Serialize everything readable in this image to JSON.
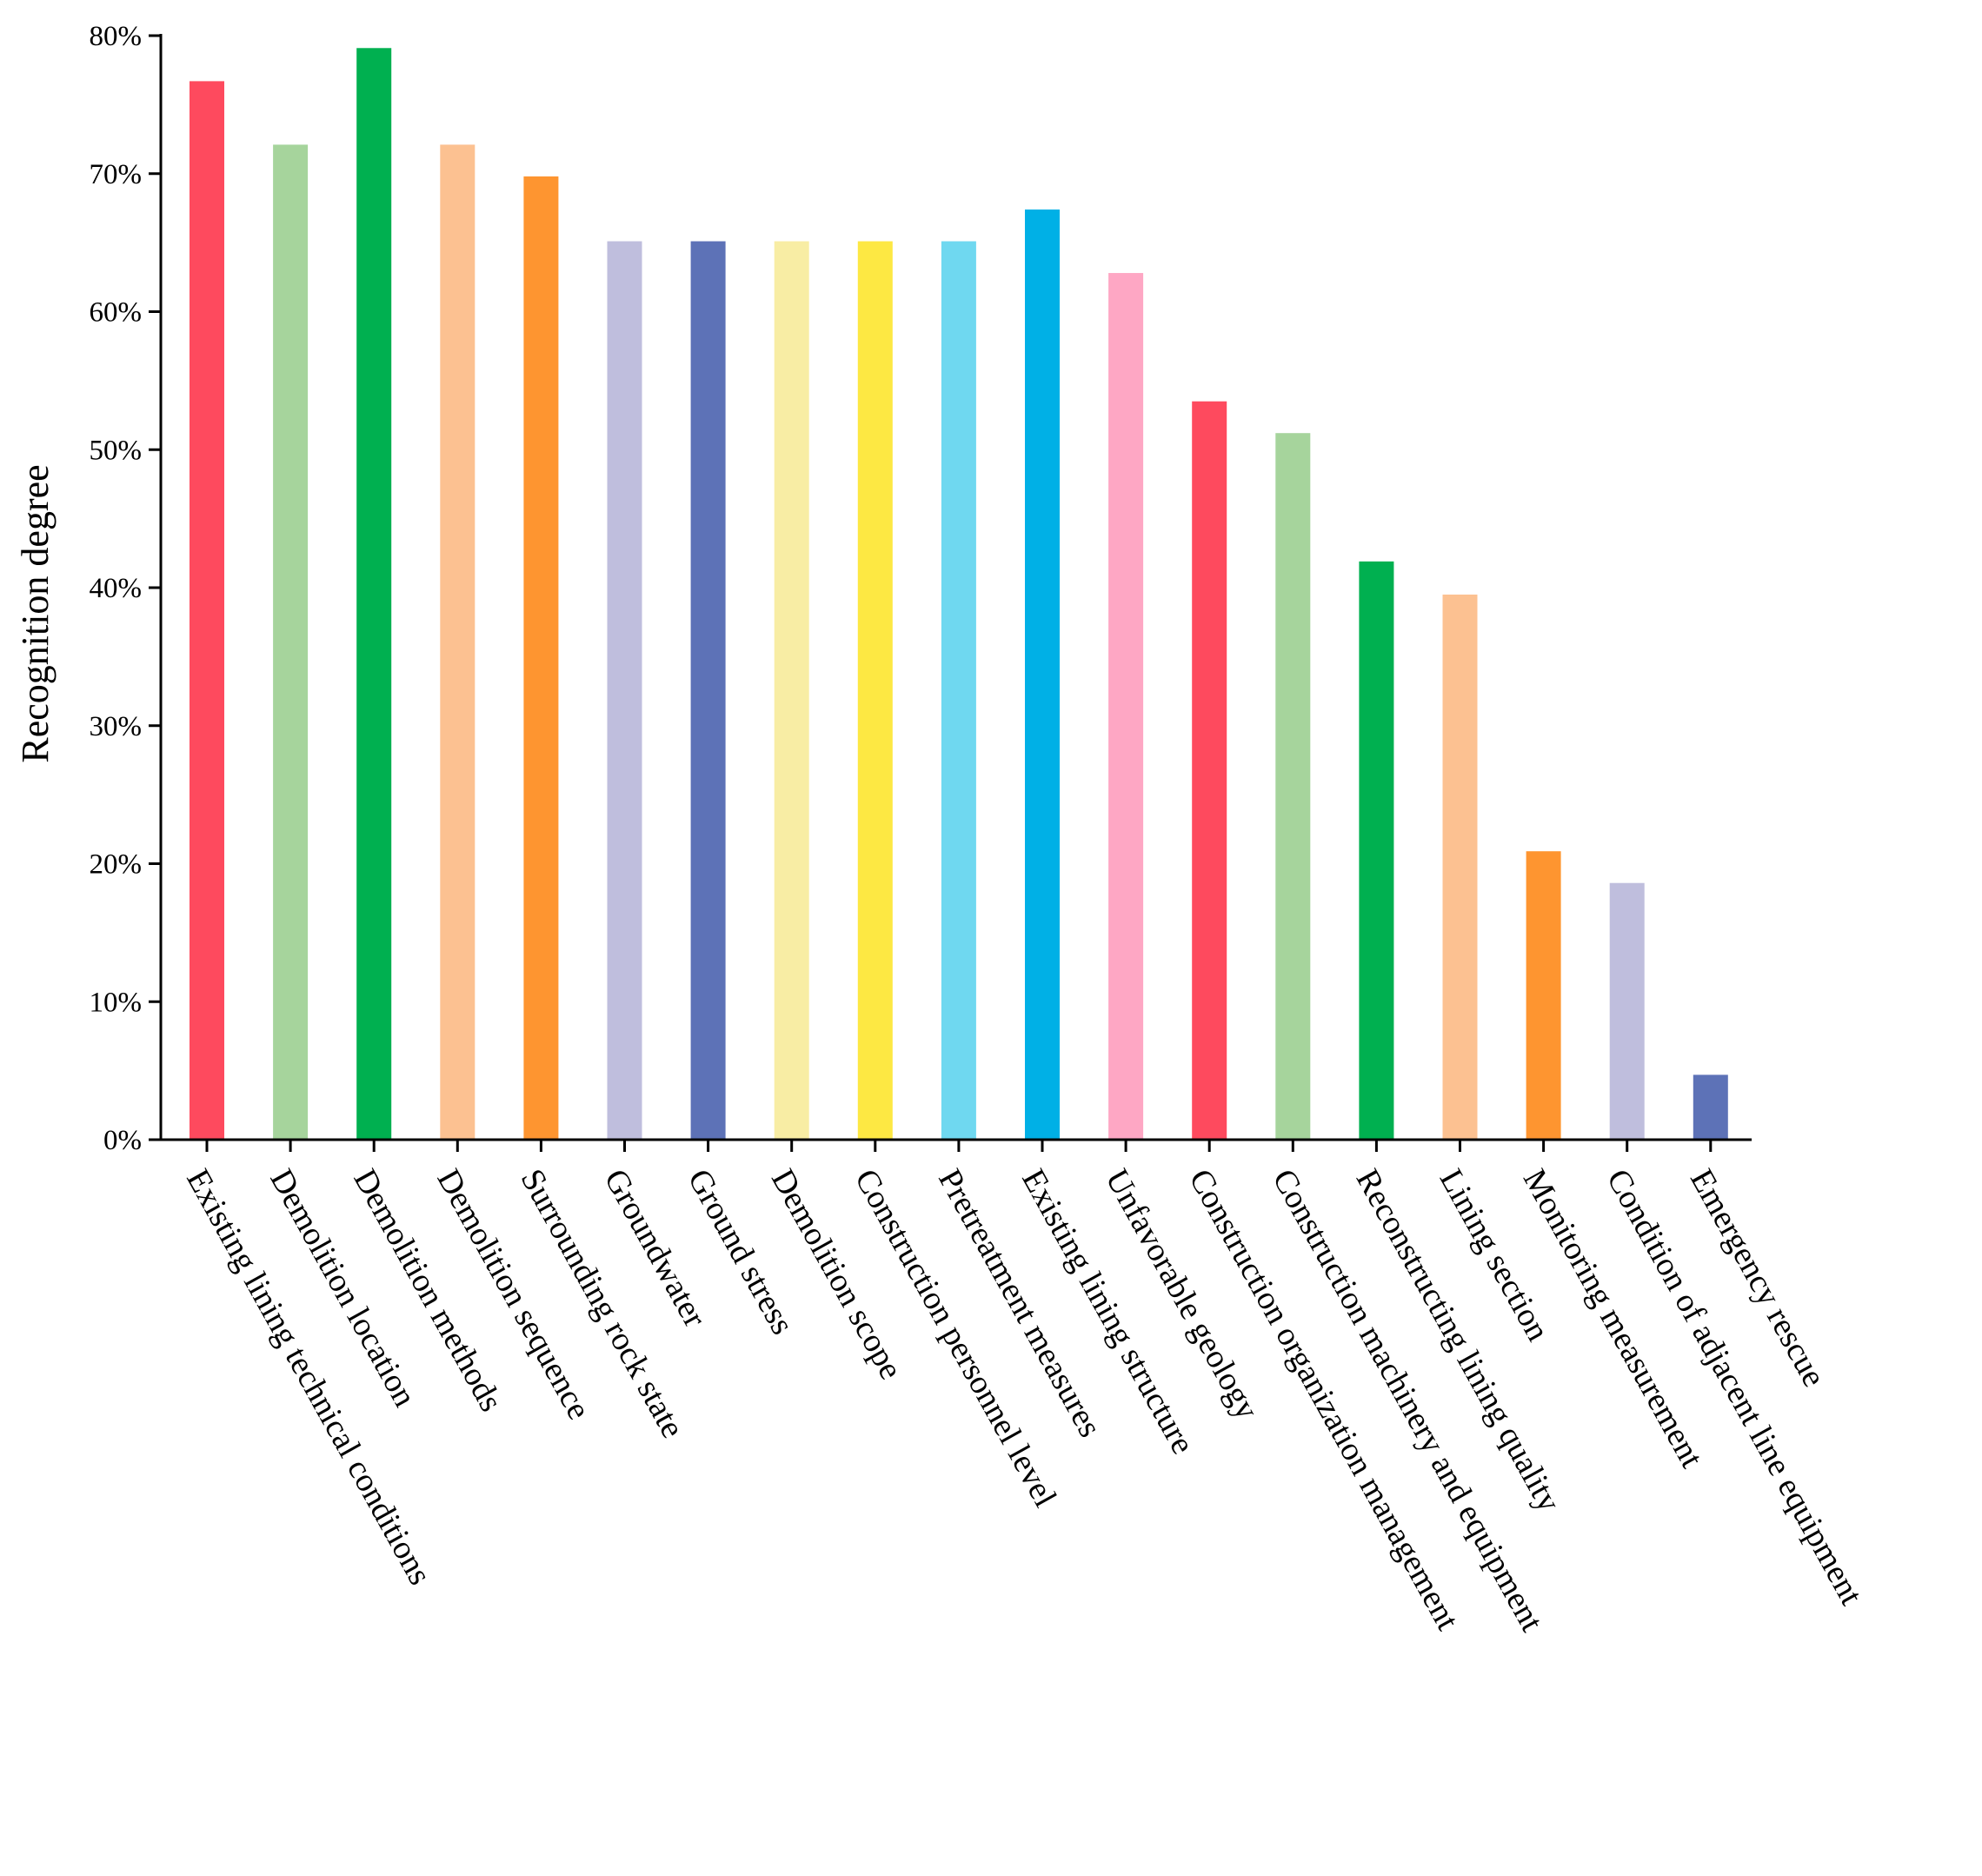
{
  "chart_data": {
    "type": "bar",
    "title": "",
    "xlabel": "",
    "ylabel": "Recognition degree",
    "ylim": [
      0,
      80
    ],
    "yticks": [
      "0%",
      "10%",
      "20%",
      "30%",
      "40%",
      "50%",
      "60%",
      "70%",
      "80%"
    ],
    "grid": false,
    "categories": [
      "Existing lining technical conditions",
      "Demolition location",
      "Demolition methods",
      "Demolition sequence",
      "Surrounding rock state",
      "Groundwater",
      "Ground stress",
      "Demolition scope",
      "Construction personnel level",
      "Pretreatment measures",
      "Existing lining structure",
      "Unfavorable geology",
      "Construction organization management",
      "Construction machinery and equipment",
      "Reconstructing lining quality",
      "Lining section",
      "Monitoring measurement",
      "Condition of adjacent line equipment",
      "Emergency rescue"
    ],
    "values": [
      76.7,
      72.1,
      79.1,
      72.1,
      69.8,
      65.1,
      65.1,
      65.1,
      65.1,
      65.1,
      67.4,
      62.8,
      53.5,
      51.2,
      41.9,
      39.5,
      20.9,
      18.6,
      4.7
    ],
    "colors": [
      "#fe4a5e",
      "#a6d49c",
      "#00b050",
      "#fcc191",
      "#fe9530",
      "#bfbedd",
      "#5d72b7",
      "#f8eda4",
      "#fde843",
      "#6fd8f0",
      "#00b0e6",
      "#fea7c4",
      "#fe4a5e",
      "#a6d49c",
      "#00b050",
      "#fcc191",
      "#fe9530",
      "#bfbedd",
      "#5d72b7"
    ]
  }
}
